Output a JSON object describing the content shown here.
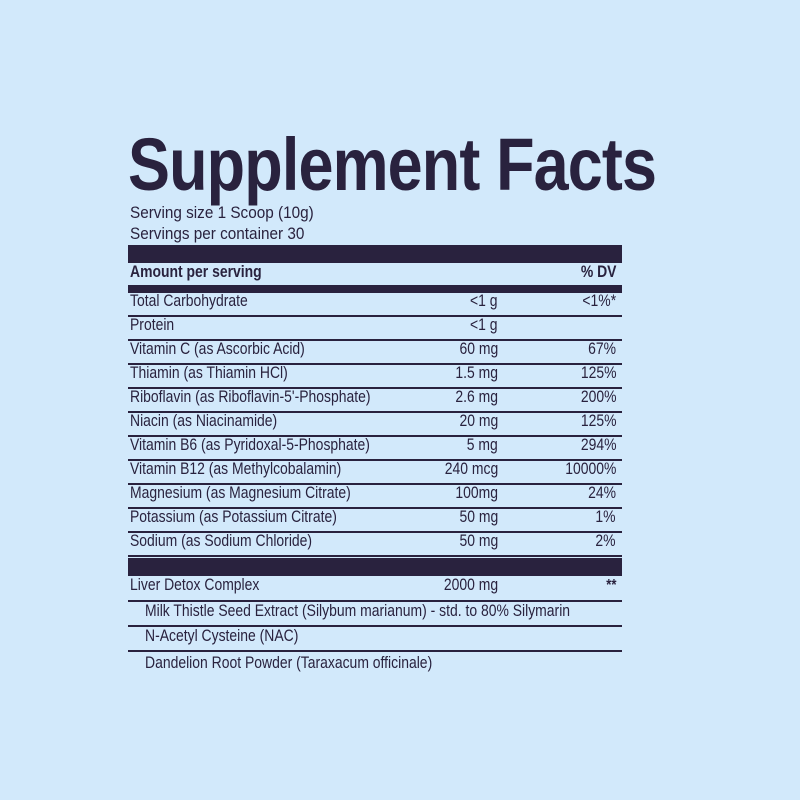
{
  "colors": {
    "background": "#d2e9fb",
    "ink": "#29223e"
  },
  "title": "Supplement Facts",
  "serving": {
    "size": "Serving size 1 Scoop (10g)",
    "per_container": "Servings per container 30"
  },
  "header": {
    "amount_label": "Amount per serving",
    "dv_label": "% DV"
  },
  "nutrients": [
    {
      "name": "Total Carbohydrate",
      "amount": "<1 g",
      "dv": "<1%*"
    },
    {
      "name": "Protein",
      "amount": "<1 g",
      "dv": ""
    },
    {
      "name": "Vitamin C (as Ascorbic Acid)",
      "amount": "60 mg",
      "dv": "67%"
    },
    {
      "name": "Thiamin (as Thiamin HCl)",
      "amount": "1.5 mg",
      "dv": "125%"
    },
    {
      "name": "Riboflavin (as Riboflavin-5'-Phosphate)",
      "amount": "2.6 mg",
      "dv": "200%"
    },
    {
      "name": "Niacin (as Niacinamide)",
      "amount": "20 mg",
      "dv": "125%"
    },
    {
      "name": "Vitamin B6 (as Pyridoxal-5-Phosphate)",
      "amount": "5 mg",
      "dv": "294%"
    },
    {
      "name": "Vitamin B12 (as Methylcobalamin)",
      "amount": "240 mcg",
      "dv": "10000%"
    },
    {
      "name": "Magnesium (as Magnesium Citrate)",
      "amount": "100mg",
      "dv": "24%"
    },
    {
      "name": "Potassium (as Potassium Citrate)",
      "amount": "50 mg",
      "dv": "1%"
    },
    {
      "name": "Sodium (as Sodium Chloride)",
      "amount": "50 mg",
      "dv": "2%"
    }
  ],
  "complex": {
    "name": "Liver Detox Complex",
    "amount": "2000 mg",
    "dv": "**",
    "ingredients": [
      {
        "name": "Milk Thistle Seed Extract (Silybum marianum) - std. to 80% Silymarin"
      },
      {
        "name": "N-Acetyl Cysteine (NAC)"
      },
      {
        "name": "Dandelion Root Powder (Taraxacum officinale)"
      }
    ]
  }
}
